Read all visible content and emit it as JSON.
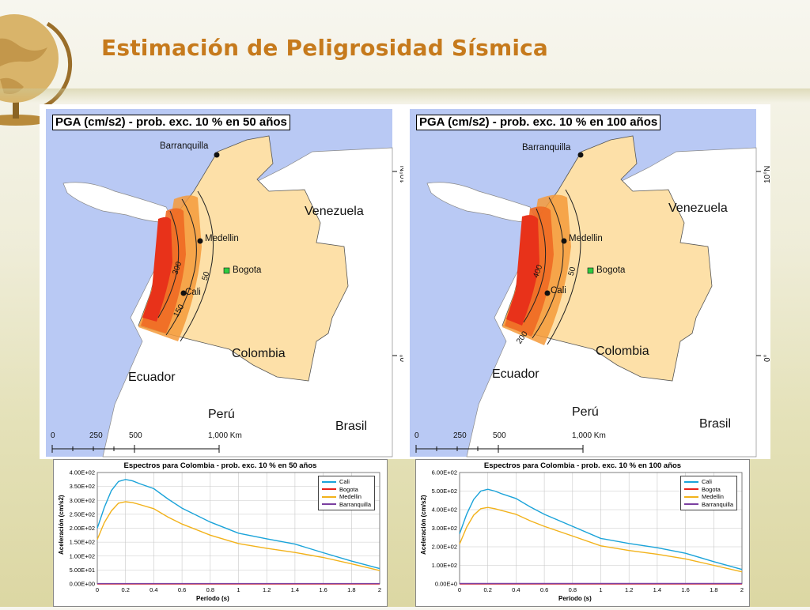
{
  "slide": {
    "title": "Estimación de Peligrosidad Sísmica"
  },
  "maps": [
    {
      "title": "PGA (cm/s2) - prob. exc. 10 % en 50 años",
      "countries": {
        "venezuela": "Venezuela",
        "colombia": "Colombia",
        "ecuador": "Ecuador",
        "peru": "Perú",
        "brasil": "Brasil"
      },
      "cities": {
        "barranquilla": "Barranquilla",
        "medellin": "Medellin",
        "bogota": "Bogota",
        "cali": "Cali"
      },
      "contours": [
        "300",
        "150",
        "50"
      ],
      "lat_labels": [
        "10°N",
        "0°"
      ],
      "scale": [
        "0",
        "250",
        "500",
        "1,000 Km"
      ]
    },
    {
      "title": "PGA (cm/s2) - prob. exc. 10 % en 100 años",
      "countries": {
        "venezuela": "Venezuela",
        "colombia": "Colombia",
        "ecuador": "Ecuador",
        "peru": "Perú",
        "brasil": "Brasil"
      },
      "cities": {
        "barranquilla": "Barranquilla",
        "medellin": "Medellin",
        "bogota": "Bogota",
        "cali": "Cali"
      },
      "contours": [
        "400",
        "200",
        "50"
      ],
      "lat_labels": [
        "10°N",
        "0°"
      ],
      "scale": [
        "0",
        "250",
        "500",
        "1,000 Km"
      ]
    }
  ],
  "colors": {
    "ocean": "#b9c9f4",
    "land_other": "#ffffff",
    "colombia": "#fde0a8",
    "hazard_high": "#e8321a",
    "hazard_mid": "#f59a3a",
    "cali": "#1aa3d9",
    "bogota": "#e8221a",
    "medellin": "#f2b21a",
    "barranquilla": "#7a3fa0"
  },
  "chart_data": [
    {
      "type": "line",
      "title": "Espectros para Colombia - prob. exc. 10 % en 50 años",
      "xlabel": "Período (s)",
      "ylabel": "Aceleración (cm/s2)",
      "xlim": [
        0,
        2
      ],
      "ylim": [
        0,
        400
      ],
      "x_ticks": [
        "0",
        "0.2",
        "0.4",
        "0.6",
        "0.8",
        "1",
        "1.2",
        "1.4",
        "1.6",
        "1.8",
        "2"
      ],
      "y_ticks": [
        "0.00E+00",
        "5.00E+01",
        "1.00E+02",
        "1.50E+02",
        "2.00E+02",
        "2.50E+02",
        "3.00E+02",
        "3.50E+02",
        "4.00E+02"
      ],
      "x": [
        0,
        0.05,
        0.1,
        0.15,
        0.2,
        0.25,
        0.3,
        0.4,
        0.5,
        0.6,
        0.8,
        1.0,
        1.2,
        1.4,
        1.6,
        1.8,
        2.0
      ],
      "series": [
        {
          "name": "Cali",
          "color": "#1aa3d9",
          "values": [
            200,
            275,
            335,
            368,
            375,
            370,
            360,
            342,
            305,
            272,
            222,
            182,
            162,
            143,
            112,
            82,
            55
          ]
        },
        {
          "name": "Bogota",
          "color": "#e8221a",
          "values": [
            0,
            0,
            0,
            0,
            0,
            0,
            0,
            0,
            0,
            0,
            0,
            0,
            0,
            0,
            0,
            0,
            0
          ]
        },
        {
          "name": "Medellin",
          "color": "#f2b21a",
          "values": [
            160,
            220,
            262,
            290,
            295,
            292,
            285,
            270,
            240,
            215,
            175,
            145,
            128,
            113,
            95,
            72,
            48
          ]
        },
        {
          "name": "Barranquilla",
          "color": "#7a3fa0",
          "values": [
            1,
            1,
            1,
            1,
            1,
            1,
            1,
            1,
            1,
            1,
            1,
            1,
            1,
            1,
            1,
            1,
            1
          ]
        }
      ]
    },
    {
      "type": "line",
      "title": "Espectros para Colombia - prob. exc. 10 % en 100 años",
      "xlabel": "Período (s)",
      "ylabel": "Aceleración (cm/s2)",
      "xlim": [
        0,
        2
      ],
      "ylim": [
        0,
        600
      ],
      "x_ticks": [
        "0",
        "0.2",
        "0.4",
        "0.6",
        "0.8",
        "1",
        "1.2",
        "1.4",
        "1.6",
        "1.8",
        "2"
      ],
      "y_ticks": [
        "0.00E+0",
        "1.00E+02",
        "2.00E+02",
        "3.00E+02",
        "4.00E+02",
        "5.00E+02",
        "6.00E+02"
      ],
      "x": [
        0,
        0.05,
        0.1,
        0.15,
        0.2,
        0.25,
        0.3,
        0.4,
        0.5,
        0.6,
        0.8,
        1.0,
        1.2,
        1.4,
        1.6,
        1.8,
        2.0
      ],
      "series": [
        {
          "name": "Cali",
          "color": "#1aa3d9",
          "values": [
            270,
            375,
            455,
            500,
            510,
            500,
            485,
            460,
            415,
            375,
            310,
            245,
            218,
            195,
            165,
            120,
            78
          ]
        },
        {
          "name": "Bogota",
          "color": "#e8221a",
          "values": [
            0,
            0,
            0,
            0,
            0,
            0,
            0,
            0,
            0,
            0,
            0,
            0,
            0,
            0,
            0,
            0,
            0
          ]
        },
        {
          "name": "Medellin",
          "color": "#f2b21a",
          "values": [
            215,
            305,
            370,
            405,
            412,
            405,
            395,
            375,
            340,
            310,
            258,
            205,
            180,
            160,
            135,
            100,
            65
          ]
        },
        {
          "name": "Barranquilla",
          "color": "#7a3fa0",
          "values": [
            2,
            2,
            2,
            2,
            2,
            2,
            2,
            2,
            2,
            2,
            2,
            2,
            2,
            2,
            2,
            2,
            2
          ]
        }
      ]
    }
  ]
}
